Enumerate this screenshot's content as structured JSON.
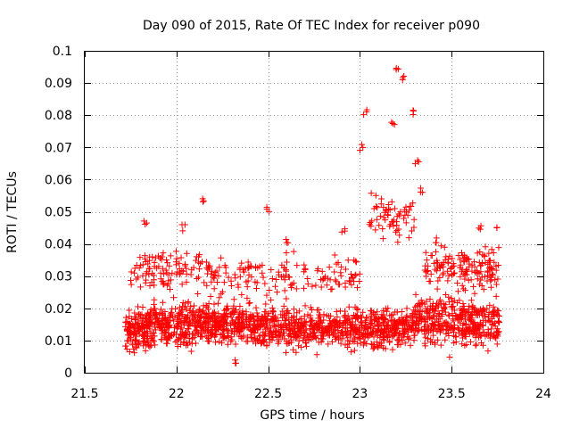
{
  "chart_data": {
    "type": "scatter",
    "title": "Day 090 of 2015, Rate Of TEC Index for receiver p090",
    "xlabel": "GPS time / hours",
    "ylabel": "ROTI / TECUs",
    "xlim": [
      21.5,
      24
    ],
    "ylim": [
      0,
      0.1
    ],
    "xticks": [
      21.5,
      22,
      22.5,
      23,
      23.5,
      24
    ],
    "xtick_labels": [
      "21.5",
      "22",
      "22.5",
      "23",
      "23.5",
      "24"
    ],
    "yticks": [
      0,
      0.01,
      0.02,
      0.03,
      0.04,
      0.05,
      0.06,
      0.07,
      0.08,
      0.09,
      0.1
    ],
    "ytick_labels": [
      "0",
      "0.01",
      "0.02",
      "0.03",
      "0.04",
      "0.05",
      "0.06",
      "0.07",
      "0.08",
      "0.09",
      "0.1"
    ],
    "grid": true,
    "marker": "plus",
    "color": "#ff0000",
    "x_range_of_data": [
      21.72,
      23.76
    ],
    "notable_points": [
      {
        "x": 21.83,
        "y": 0.047
      },
      {
        "x": 21.91,
        "y": 0.036
      },
      {
        "x": 22.04,
        "y": 0.045
      },
      {
        "x": 22.15,
        "y": 0.054
      },
      {
        "x": 22.5,
        "y": 0.051
      },
      {
        "x": 22.6,
        "y": 0.041
      },
      {
        "x": 22.91,
        "y": 0.044
      },
      {
        "x": 23.03,
        "y": 0.081
      },
      {
        "x": 23.01,
        "y": 0.07
      },
      {
        "x": 23.2,
        "y": 0.095
      },
      {
        "x": 23.24,
        "y": 0.092
      },
      {
        "x": 23.29,
        "y": 0.081
      },
      {
        "x": 23.18,
        "y": 0.077
      },
      {
        "x": 23.31,
        "y": 0.065
      },
      {
        "x": 23.34,
        "y": 0.057
      },
      {
        "x": 23.26,
        "y": 0.051
      },
      {
        "x": 23.41,
        "y": 0.041
      },
      {
        "x": 23.65,
        "y": 0.045
      },
      {
        "x": 23.75,
        "y": 0.045
      },
      {
        "x": 22.33,
        "y": 0.003
      }
    ],
    "clusters": [
      {
        "x_start": 21.72,
        "x_end": 21.85,
        "y_mean": 0.014,
        "y_spread": 0.006,
        "count": 140
      },
      {
        "x_start": 21.85,
        "x_end": 22.2,
        "y_mean": 0.015,
        "y_spread": 0.006,
        "count": 330
      },
      {
        "x_start": 22.2,
        "x_end": 22.55,
        "y_mean": 0.015,
        "y_spread": 0.006,
        "count": 320
      },
      {
        "x_start": 22.55,
        "x_end": 23.0,
        "y_mean": 0.014,
        "y_spread": 0.006,
        "count": 360
      },
      {
        "x_start": 23.0,
        "x_end": 23.3,
        "y_mean": 0.014,
        "y_spread": 0.006,
        "count": 260
      },
      {
        "x_start": 23.3,
        "x_end": 23.76,
        "y_mean": 0.016,
        "y_spread": 0.007,
        "count": 400
      },
      {
        "x_start": 21.75,
        "x_end": 22.2,
        "y_mean": 0.032,
        "y_spread": 0.006,
        "count": 110
      },
      {
        "x_start": 22.2,
        "x_end": 23.0,
        "y_mean": 0.03,
        "y_spread": 0.006,
        "count": 140
      },
      {
        "x_start": 23.35,
        "x_end": 23.76,
        "y_mean": 0.033,
        "y_spread": 0.006,
        "count": 150
      },
      {
        "x_start": 23.05,
        "x_end": 23.3,
        "y_mean": 0.048,
        "y_spread": 0.008,
        "count": 60
      }
    ]
  }
}
